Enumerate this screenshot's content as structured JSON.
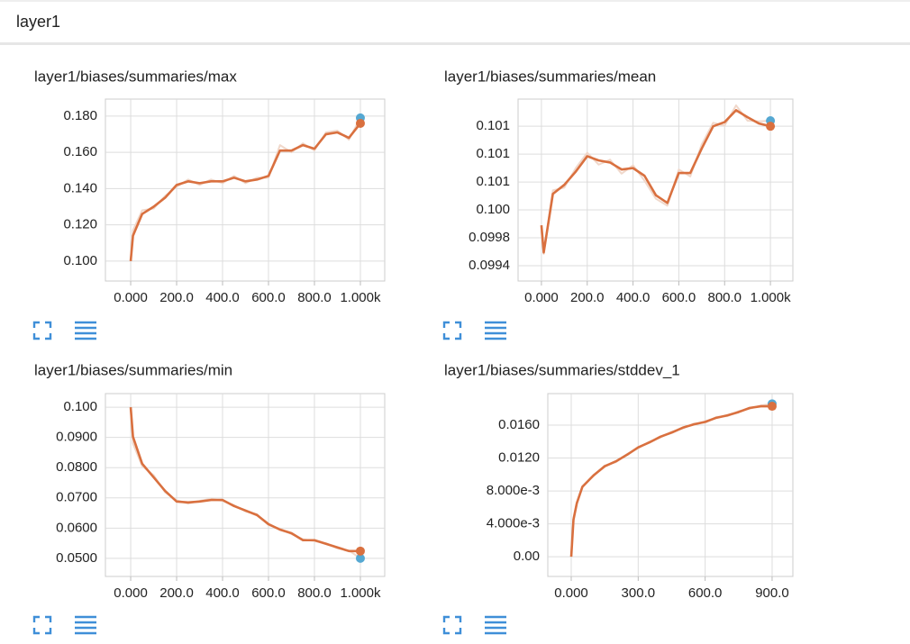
{
  "header": {
    "title": "layer1"
  },
  "chart_data": [
    {
      "type": "line",
      "title": "layer1/biases/summaries/max",
      "x": [
        0,
        10,
        50,
        100,
        150,
        200,
        250,
        300,
        350,
        400,
        450,
        500,
        550,
        600,
        650,
        700,
        750,
        800,
        850,
        900,
        950,
        1000
      ],
      "series": [
        {
          "color": "#f0d8cb",
          "marker_color": "#55a8d2",
          "values": [
            0.1,
            0.117,
            0.128,
            0.129,
            0.136,
            0.141,
            0.145,
            0.142,
            0.145,
            0.143,
            0.147,
            0.143,
            0.146,
            0.146,
            0.164,
            0.16,
            0.165,
            0.161,
            0.171,
            0.172,
            0.167,
            0.179
          ]
        },
        {
          "color": "#d9703f",
          "marker_color": "#d9703f",
          "values": [
            0.1,
            0.114,
            0.126,
            0.13,
            0.135,
            0.142,
            0.144,
            0.143,
            0.144,
            0.144,
            0.146,
            0.144,
            0.145,
            0.147,
            0.161,
            0.161,
            0.164,
            0.162,
            0.17,
            0.171,
            0.168,
            0.176
          ]
        }
      ],
      "xlim": [
        -110,
        1106
      ],
      "ylim": [
        0.089,
        0.1894
      ],
      "xticks": [
        {
          "value": 0,
          "label": "0.000"
        },
        {
          "value": 200,
          "label": "200.0"
        },
        {
          "value": 400,
          "label": "400.0"
        },
        {
          "value": 600,
          "label": "600.0"
        },
        {
          "value": 800,
          "label": "800.0"
        },
        {
          "value": 1000,
          "label": "1.000k"
        }
      ],
      "yticks": [
        {
          "value": 0.1,
          "label": "0.100"
        },
        {
          "value": 0.12,
          "label": "0.120"
        },
        {
          "value": 0.14,
          "label": "0.140"
        },
        {
          "value": 0.16,
          "label": "0.160"
        },
        {
          "value": 0.18,
          "label": "0.180"
        }
      ],
      "grid": true
    },
    {
      "type": "line",
      "title": "layer1/biases/summaries/mean",
      "x": [
        0,
        10,
        50,
        100,
        150,
        200,
        250,
        300,
        350,
        400,
        450,
        500,
        550,
        600,
        650,
        700,
        750,
        800,
        850,
        900,
        950,
        1000
      ],
      "series": [
        {
          "color": "#f0d8cb",
          "marker_color": "#55a8d2",
          "values": [
            0.0999,
            0.09957,
            0.10048,
            0.10052,
            0.1008,
            0.10102,
            0.10085,
            0.10092,
            0.10072,
            0.10084,
            0.10062,
            0.10036,
            0.10026,
            0.10078,
            0.10068,
            0.10114,
            0.10145,
            0.10141,
            0.1017,
            0.10148,
            0.10147,
            0.10148
          ]
        },
        {
          "color": "#d9703f",
          "marker_color": "#d9703f",
          "values": [
            0.09998,
            0.09959,
            0.10043,
            0.10056,
            0.10075,
            0.10097,
            0.10091,
            0.10088,
            0.10078,
            0.1008,
            0.10069,
            0.10041,
            0.1003,
            0.10073,
            0.10073,
            0.10108,
            0.1014,
            0.10146,
            0.10163,
            0.10153,
            0.10144,
            0.1014
          ]
        }
      ],
      "xlim": [
        -102,
        1098
      ],
      "ylim": [
        0.09918,
        0.10179
      ],
      "xticks": [
        {
          "value": 0,
          "label": "0.000"
        },
        {
          "value": 200,
          "label": "200.0"
        },
        {
          "value": 400,
          "label": "400.0"
        },
        {
          "value": 600,
          "label": "600.0"
        },
        {
          "value": 800,
          "label": "800.0"
        },
        {
          "value": 1000,
          "label": "1.000k"
        }
      ],
      "yticks": [
        {
          "value": 0.0994,
          "label": "0.0994"
        },
        {
          "value": 0.0998,
          "label": "0.0998"
        },
        {
          "value": 0.1002,
          "label": "0.100"
        },
        {
          "value": 0.1006,
          "label": "0.101"
        },
        {
          "value": 0.101,
          "label": "0.101"
        },
        {
          "value": 0.1014,
          "label": "0.101"
        }
      ],
      "grid": true
    },
    {
      "type": "line",
      "title": "layer1/biases/summaries/min",
      "x": [
        0,
        10,
        50,
        100,
        150,
        200,
        250,
        300,
        350,
        400,
        450,
        500,
        550,
        600,
        650,
        700,
        750,
        800,
        850,
        900,
        950,
        1000
      ],
      "series": [
        {
          "color": "#f0d8cb",
          "marker_color": "#55a8d2",
          "values": [
            0.1,
            0.088,
            0.0805,
            0.0775,
            0.0718,
            0.0692,
            0.0681,
            0.069,
            0.0697,
            0.069,
            0.0676,
            0.0655,
            0.0646,
            0.061,
            0.0598,
            0.058,
            0.0563,
            0.0557,
            0.055,
            0.0533,
            0.0526,
            0.05
          ]
        },
        {
          "color": "#d9703f",
          "marker_color": "#d9703f",
          "values": [
            0.1,
            0.0902,
            0.0813,
            0.0768,
            0.0723,
            0.0688,
            0.0685,
            0.0688,
            0.0693,
            0.0693,
            0.0673,
            0.0658,
            0.0643,
            0.0613,
            0.0595,
            0.0583,
            0.056,
            0.056,
            0.0548,
            0.0536,
            0.0524,
            0.0524
          ]
        }
      ],
      "xlim": [
        -110,
        1106
      ],
      "ylim": [
        0.044,
        0.1045
      ],
      "xticks": [
        {
          "value": 0,
          "label": "0.000"
        },
        {
          "value": 200,
          "label": "200.0"
        },
        {
          "value": 400,
          "label": "400.0"
        },
        {
          "value": 600,
          "label": "600.0"
        },
        {
          "value": 800,
          "label": "800.0"
        },
        {
          "value": 1000,
          "label": "1.000k"
        }
      ],
      "yticks": [
        {
          "value": 0.05,
          "label": "0.0500"
        },
        {
          "value": 0.06,
          "label": "0.0600"
        },
        {
          "value": 0.07,
          "label": "0.0700"
        },
        {
          "value": 0.08,
          "label": "0.0800"
        },
        {
          "value": 0.09,
          "label": "0.0900"
        },
        {
          "value": 0.1,
          "label": "0.100"
        }
      ],
      "grid": true
    },
    {
      "type": "line",
      "title": "layer1/biases/summaries/stddev_1",
      "x": [
        0,
        10,
        25,
        50,
        100,
        150,
        200,
        250,
        300,
        350,
        400,
        450,
        500,
        550,
        600,
        650,
        700,
        750,
        800,
        850,
        900
      ],
      "series": [
        {
          "color": "#f0d8cb",
          "marker_color": "#55a8d2",
          "values": [
            0,
            0.0047,
            0.0066,
            0.0086,
            0.0098,
            0.0111,
            0.0115,
            0.0125,
            0.0132,
            0.014,
            0.0145,
            0.0152,
            0.0156,
            0.0162,
            0.0163,
            0.017,
            0.0171,
            0.0177,
            0.018,
            0.0184,
            0.0186
          ]
        },
        {
          "color": "#d9703f",
          "marker_color": "#d9703f",
          "values": [
            0,
            0.0045,
            0.0065,
            0.0085,
            0.0099,
            0.011,
            0.0116,
            0.0124,
            0.0133,
            0.0139,
            0.0146,
            0.0151,
            0.0157,
            0.0161,
            0.0164,
            0.0169,
            0.0172,
            0.0176,
            0.0181,
            0.0183,
            0.0183
          ]
        }
      ],
      "xlim": [
        -105,
        993
      ],
      "ylim": [
        -0.0024,
        0.01984
      ],
      "xticks": [
        {
          "value": 0,
          "label": "0.000"
        },
        {
          "value": 300,
          "label": "300.0"
        },
        {
          "value": 600,
          "label": "600.0"
        },
        {
          "value": 900,
          "label": "900.0"
        }
      ],
      "yticks": [
        {
          "value": 0,
          "label": "0.00"
        },
        {
          "value": 0.004,
          "label": "4.000e-3"
        },
        {
          "value": 0.008,
          "label": "8.000e-3"
        },
        {
          "value": 0.012,
          "label": "0.0120"
        },
        {
          "value": 0.016,
          "label": "0.0160"
        }
      ],
      "grid": true
    }
  ]
}
